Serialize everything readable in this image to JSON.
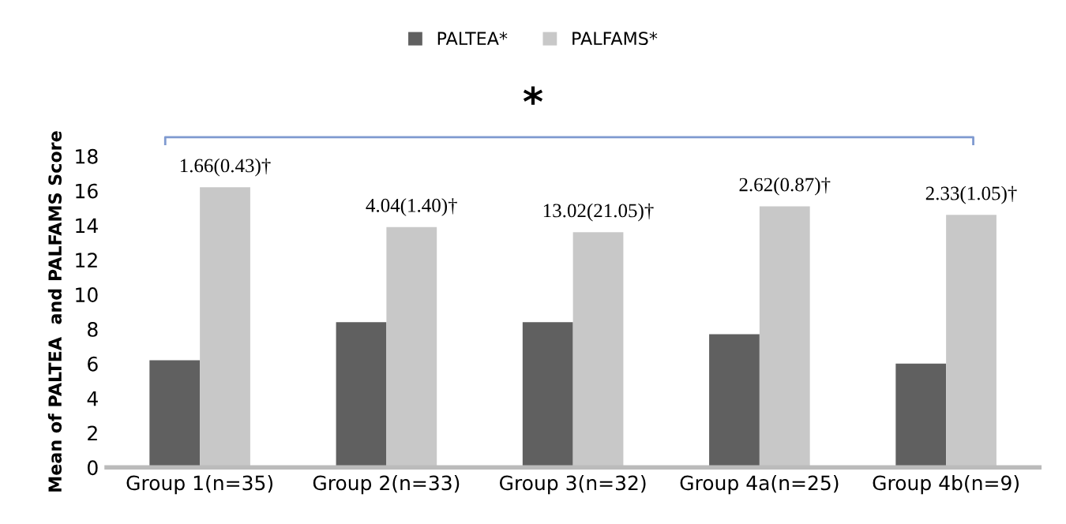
{
  "chart_data": {
    "type": "bar",
    "ylabel": "Mean of PALTEA  and PALFAMS Score",
    "categories": [
      "Group 1(n=35)",
      "Group 2(n=33)",
      "Group 3(n=32)",
      "Group 4a(n=25)",
      "Group 4b(n=9)"
    ],
    "series": [
      {
        "name": "PALTEA*",
        "color": "#606060",
        "values": [
          6.2,
          8.4,
          8.4,
          7.7,
          6.0
        ]
      },
      {
        "name": "PALFAMS*",
        "color": "#c8c8c8",
        "values": [
          16.2,
          13.9,
          13.6,
          15.1,
          14.6
        ]
      }
    ],
    "ylim": [
      0,
      18
    ],
    "yticks": [
      0,
      2,
      4,
      6,
      8,
      10,
      12,
      14,
      16,
      18
    ],
    "grid": false,
    "legend": "top",
    "annotations": [
      {
        "text": "1.66(0.43)†",
        "x": "Group 1(n=35)",
        "y": 16.2
      },
      {
        "text": "4.04(1.40)†",
        "x": "Group 2(n=33)",
        "y": 13.9
      },
      {
        "text": "13.02(21.05)†",
        "x": "Group 3(n=32)",
        "y": 13.6
      },
      {
        "text": "2.62(0.87)†",
        "x": "Group 4a(n=25)",
        "y": 15.1
      },
      {
        "text": "2.33(1.05)†",
        "x": "Group 4b(n=9)",
        "y": 14.6
      },
      "*"
    ]
  }
}
